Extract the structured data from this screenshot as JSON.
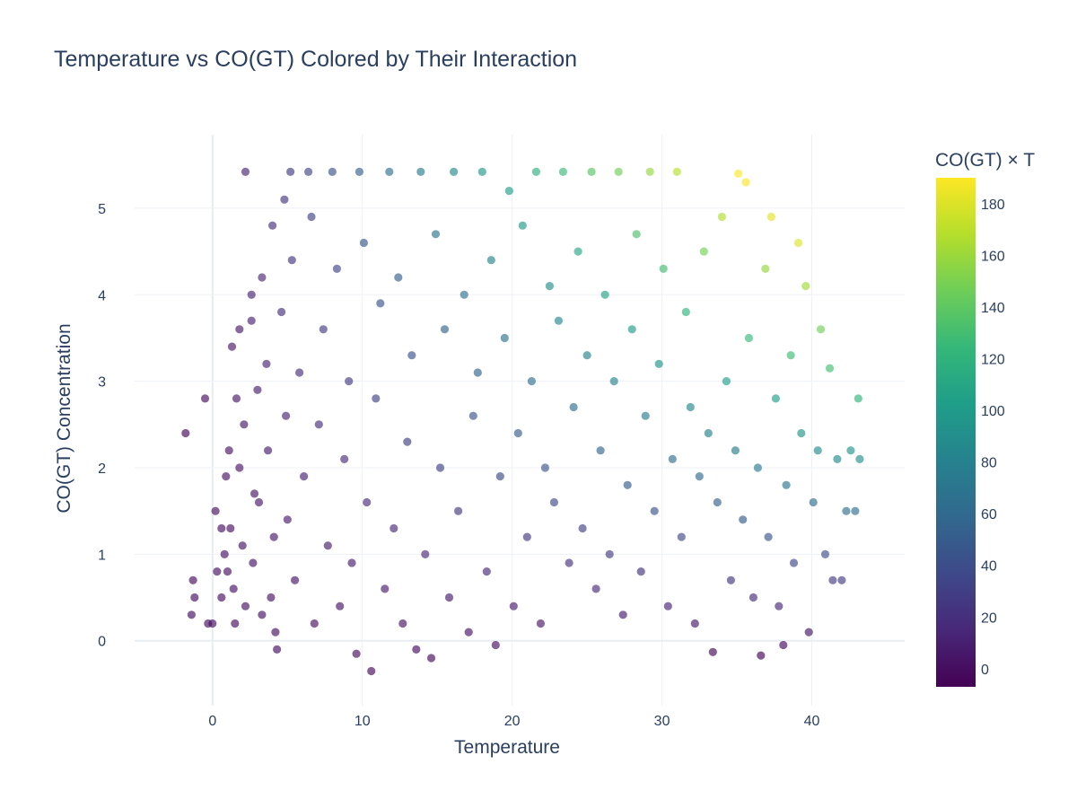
{
  "chart_data": {
    "type": "scatter",
    "title": "Temperature vs CO(GT) Colored by Their Interaction",
    "xlabel": "Temperature",
    "ylabel": "CO(GT) Concentration",
    "xlim": [
      -5.2,
      46.2
    ],
    "ylim": [
      -0.75,
      5.85
    ],
    "x_ticks": [
      0,
      10,
      20,
      30,
      40
    ],
    "y_ticks": [
      0,
      1,
      2,
      3,
      4,
      5
    ],
    "grid": true,
    "colorscale": "Viridis",
    "colorscale_stops": [
      "#440154",
      "#482878",
      "#3e4989",
      "#31688e",
      "#26828e",
      "#1f9e89",
      "#35b779",
      "#6ece58",
      "#b5de2b",
      "#fde725"
    ],
    "marker_opacity": 0.65,
    "colorbar": {
      "title": "CO(GT) × T",
      "range": [
        -7,
        190
      ],
      "ticks": [
        0,
        20,
        40,
        60,
        80,
        100,
        120,
        140,
        160,
        180
      ]
    },
    "color_variable": "CO(GT) × Temperature",
    "series": [
      {
        "points": [
          [
            -1.8,
            2.4
          ],
          [
            -1.3,
            0.7
          ],
          [
            -1.2,
            0.5
          ],
          [
            -1.4,
            0.3
          ],
          [
            -0.5,
            2.8
          ],
          [
            -0.3,
            0.2
          ],
          [
            0.0,
            0.2
          ],
          [
            0.2,
            1.5
          ],
          [
            0.3,
            0.8
          ],
          [
            0.6,
            1.3
          ],
          [
            0.6,
            0.5
          ],
          [
            0.9,
            1.9
          ],
          [
            0.8,
            1.0
          ],
          [
            1.1,
            2.2
          ],
          [
            1.3,
            3.4
          ],
          [
            1.0,
            0.8
          ],
          [
            1.2,
            1.3
          ],
          [
            1.4,
            0.6
          ],
          [
            1.6,
            2.8
          ],
          [
            1.5,
            0.2
          ],
          [
            1.8,
            3.6
          ],
          [
            1.8,
            2.0
          ],
          [
            2.0,
            1.1
          ],
          [
            2.2,
            0.4
          ],
          [
            2.1,
            2.5
          ],
          [
            2.2,
            5.42
          ],
          [
            2.6,
            3.7
          ],
          [
            2.6,
            4.0
          ],
          [
            2.8,
            1.7
          ],
          [
            2.7,
            0.9
          ],
          [
            3.0,
            2.9
          ],
          [
            3.1,
            1.6
          ],
          [
            3.3,
            4.2
          ],
          [
            3.3,
            0.3
          ],
          [
            3.6,
            3.2
          ],
          [
            3.7,
            2.2
          ],
          [
            3.9,
            0.5
          ],
          [
            4.0,
            4.8
          ],
          [
            4.1,
            1.2
          ],
          [
            4.2,
            0.1
          ],
          [
            4.3,
            -0.1
          ],
          [
            4.6,
            3.8
          ],
          [
            4.8,
            5.1
          ],
          [
            4.9,
            2.6
          ],
          [
            5.0,
            1.4
          ],
          [
            5.2,
            5.42
          ],
          [
            5.3,
            4.4
          ],
          [
            5.5,
            0.7
          ],
          [
            5.8,
            3.1
          ],
          [
            6.1,
            1.9
          ],
          [
            6.4,
            5.42
          ],
          [
            6.6,
            4.9
          ],
          [
            6.8,
            0.2
          ],
          [
            7.1,
            2.5
          ],
          [
            7.4,
            3.6
          ],
          [
            7.7,
            1.1
          ],
          [
            8.0,
            5.42
          ],
          [
            8.3,
            4.3
          ],
          [
            8.5,
            0.4
          ],
          [
            8.8,
            2.1
          ],
          [
            9.1,
            3.0
          ],
          [
            9.3,
            0.9
          ],
          [
            9.6,
            -0.15
          ],
          [
            9.8,
            5.42
          ],
          [
            10.1,
            4.6
          ],
          [
            10.3,
            1.6
          ],
          [
            10.6,
            -0.35
          ],
          [
            10.9,
            2.8
          ],
          [
            11.2,
            3.9
          ],
          [
            11.5,
            0.6
          ],
          [
            11.8,
            5.42
          ],
          [
            12.1,
            1.3
          ],
          [
            12.4,
            4.2
          ],
          [
            12.7,
            0.2
          ],
          [
            13.0,
            2.3
          ],
          [
            13.3,
            3.3
          ],
          [
            13.6,
            -0.1
          ],
          [
            13.9,
            5.42
          ],
          [
            14.2,
            1.0
          ],
          [
            14.6,
            -0.2
          ],
          [
            14.9,
            4.7
          ],
          [
            15.2,
            2.0
          ],
          [
            15.5,
            3.6
          ],
          [
            15.8,
            0.5
          ],
          [
            16.1,
            5.42
          ],
          [
            16.4,
            1.5
          ],
          [
            16.8,
            4.0
          ],
          [
            17.1,
            0.1
          ],
          [
            17.4,
            2.6
          ],
          [
            17.7,
            3.1
          ],
          [
            18.0,
            5.42
          ],
          [
            18.3,
            0.8
          ],
          [
            18.6,
            4.4
          ],
          [
            18.9,
            -0.05
          ],
          [
            19.2,
            1.9
          ],
          [
            19.5,
            3.5
          ],
          [
            19.8,
            5.2
          ],
          [
            20.1,
            0.4
          ],
          [
            20.4,
            2.4
          ],
          [
            20.7,
            4.8
          ],
          [
            21.0,
            1.2
          ],
          [
            21.3,
            3.0
          ],
          [
            21.6,
            5.42
          ],
          [
            21.9,
            0.2
          ],
          [
            22.2,
            2.0
          ],
          [
            22.5,
            4.1
          ],
          [
            22.8,
            1.6
          ],
          [
            23.1,
            3.7
          ],
          [
            23.4,
            5.42
          ],
          [
            23.8,
            0.9
          ],
          [
            24.1,
            2.7
          ],
          [
            24.4,
            4.5
          ],
          [
            24.7,
            1.3
          ],
          [
            25.0,
            3.3
          ],
          [
            25.3,
            5.42
          ],
          [
            25.6,
            0.6
          ],
          [
            25.9,
            2.2
          ],
          [
            26.2,
            4.0
          ],
          [
            26.5,
            1.0
          ],
          [
            26.8,
            3.0
          ],
          [
            27.1,
            5.42
          ],
          [
            27.4,
            0.3
          ],
          [
            27.7,
            1.8
          ],
          [
            28.0,
            3.6
          ],
          [
            28.3,
            4.7
          ],
          [
            28.6,
            0.8
          ],
          [
            28.9,
            2.6
          ],
          [
            29.2,
            5.42
          ],
          [
            29.5,
            1.5
          ],
          [
            29.8,
            3.2
          ],
          [
            30.1,
            4.3
          ],
          [
            30.4,
            0.4
          ],
          [
            30.7,
            2.1
          ],
          [
            31.0,
            5.42
          ],
          [
            31.3,
            1.2
          ],
          [
            31.6,
            3.8
          ],
          [
            31.9,
            2.7
          ],
          [
            32.2,
            0.2
          ],
          [
            32.5,
            1.9
          ],
          [
            32.8,
            4.5
          ],
          [
            33.1,
            2.4
          ],
          [
            33.4,
            -0.13
          ],
          [
            33.7,
            1.6
          ],
          [
            34.0,
            4.9
          ],
          [
            34.3,
            3.0
          ],
          [
            34.6,
            0.7
          ],
          [
            34.9,
            2.2
          ],
          [
            35.1,
            5.4
          ],
          [
            35.4,
            1.4
          ],
          [
            35.6,
            5.3
          ],
          [
            35.8,
            3.5
          ],
          [
            36.1,
            0.5
          ],
          [
            36.4,
            2.0
          ],
          [
            36.6,
            -0.17
          ],
          [
            36.9,
            4.3
          ],
          [
            37.1,
            1.2
          ],
          [
            37.3,
            4.9
          ],
          [
            37.6,
            2.8
          ],
          [
            37.8,
            0.4
          ],
          [
            38.1,
            -0.05
          ],
          [
            38.3,
            1.8
          ],
          [
            38.6,
            3.3
          ],
          [
            38.8,
            0.9
          ],
          [
            39.1,
            4.6
          ],
          [
            39.3,
            2.4
          ],
          [
            39.6,
            4.1
          ],
          [
            39.8,
            0.1
          ],
          [
            40.1,
            1.6
          ],
          [
            40.4,
            2.2
          ],
          [
            40.6,
            3.6
          ],
          [
            40.9,
            1.0
          ],
          [
            41.2,
            3.15
          ],
          [
            41.4,
            0.7
          ],
          [
            41.7,
            2.1
          ],
          [
            42.0,
            0.7
          ],
          [
            42.3,
            1.5
          ],
          [
            42.6,
            2.2
          ],
          [
            42.9,
            1.5
          ],
          [
            43.1,
            2.8
          ],
          [
            43.2,
            2.1
          ]
        ]
      }
    ]
  }
}
